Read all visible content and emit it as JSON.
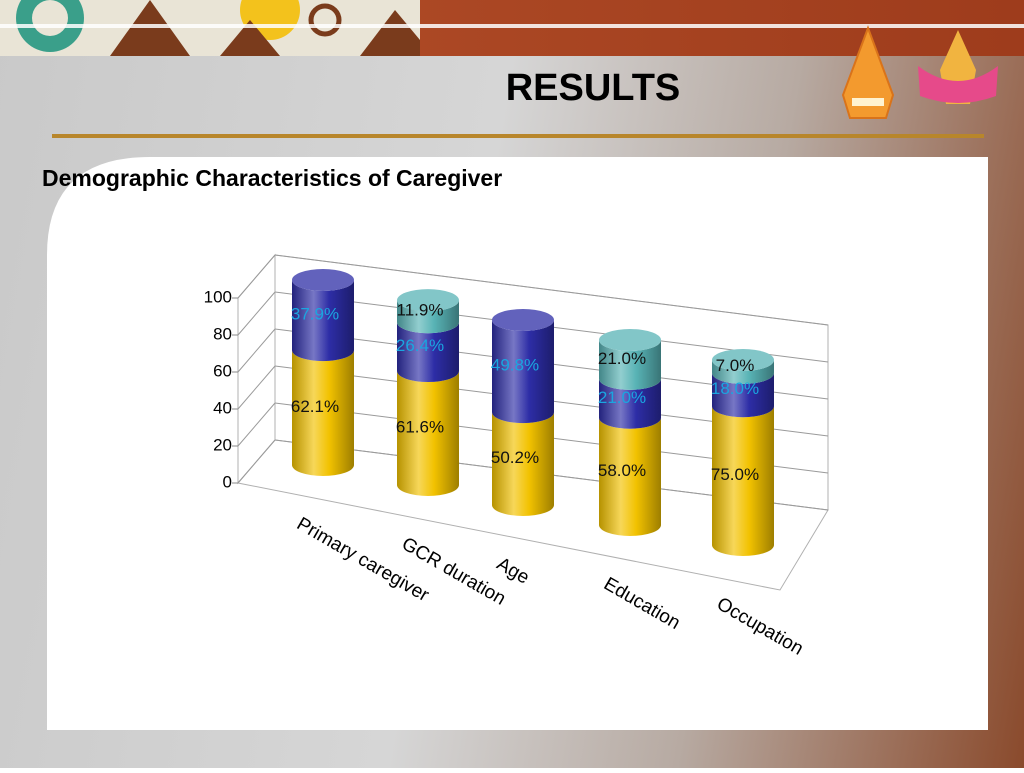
{
  "chart_data": {
    "type": "bar3d-stacked",
    "title": "RESULTS",
    "subtitle": "Demographic Characteristics of Caregiver",
    "categories": [
      "Primary caregiver",
      "GCR duration",
      "Age",
      "Education",
      "Occupation"
    ],
    "series": [
      {
        "color": "#f2c200",
        "label_color": "#111111",
        "values": [
          62.1,
          61.6,
          50.2,
          58.0,
          75.0
        ],
        "value_labels": [
          "62.1%",
          "61.6%",
          "50.2%",
          "58.0%",
          "75.0%"
        ]
      },
      {
        "color": "#2d2da6",
        "label_color": "#1aa6e0",
        "values": [
          37.9,
          26.4,
          49.8,
          21.0,
          18.0
        ],
        "value_labels": [
          "37.9%",
          "26.4%",
          "49.8%",
          "21.0%",
          "18.0%"
        ]
      },
      {
        "color": "#58b3b5",
        "label_color": "#111111",
        "values": [
          null,
          11.9,
          null,
          21.0,
          7.0
        ],
        "value_labels": [
          null,
          "11.9%",
          null,
          "21.0%",
          "7.0%"
        ]
      }
    ],
    "ylim": [
      0,
      100
    ],
    "yticks": [
      0,
      20,
      40,
      60,
      80,
      100
    ],
    "grid": true
  }
}
